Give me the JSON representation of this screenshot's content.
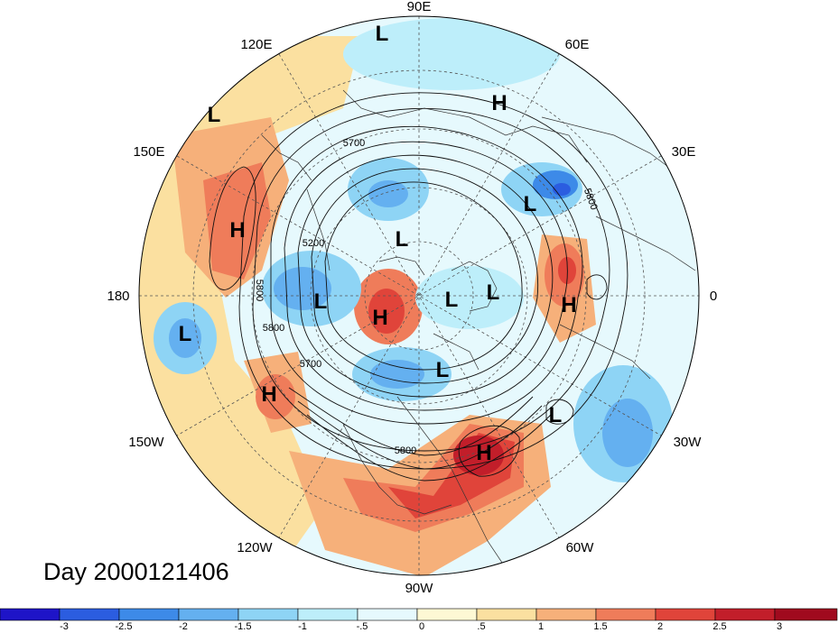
{
  "title": "Day 2000121406",
  "longitude_labels": {
    "e90": "90E",
    "e120": "120E",
    "e60": "60E",
    "e150": "150E",
    "e30": "30E",
    "d180": "180",
    "d0": "0",
    "w150": "150W",
    "w30": "30W",
    "w120": "120W",
    "w60": "60W",
    "w90": "90W"
  },
  "contour_labels": [
    "5700",
    "5200",
    "5800",
    "5800",
    "5700",
    "5800",
    "5800"
  ],
  "pressure_systems": [
    {
      "type": "L"
    },
    {
      "type": "L"
    },
    {
      "type": "H"
    },
    {
      "type": "L"
    },
    {
      "type": "H"
    },
    {
      "type": "L"
    },
    {
      "type": "L"
    },
    {
      "type": "H"
    },
    {
      "type": "L"
    },
    {
      "type": "L"
    },
    {
      "type": "H"
    },
    {
      "type": "L"
    },
    {
      "type": "L"
    },
    {
      "type": "H"
    },
    {
      "type": "L"
    },
    {
      "type": "H"
    }
  ],
  "colorbar": {
    "ticks": [
      "-3",
      "-2.5",
      "-2",
      "-1.5",
      "-1",
      "-.5",
      "0",
      ".5",
      "1",
      "1.5",
      "2",
      "2.5",
      "3"
    ],
    "colors": [
      "#1e14c8",
      "#2b5de0",
      "#3d8ae8",
      "#64b0f0",
      "#8ed4f5",
      "#bdeefa",
      "#e6f9fd",
      "#fdf8d4",
      "#fbe0a0",
      "#f6b07a",
      "#ef7c5a",
      "#e0443a",
      "#c21e2a",
      "#a00a1e"
    ]
  }
}
